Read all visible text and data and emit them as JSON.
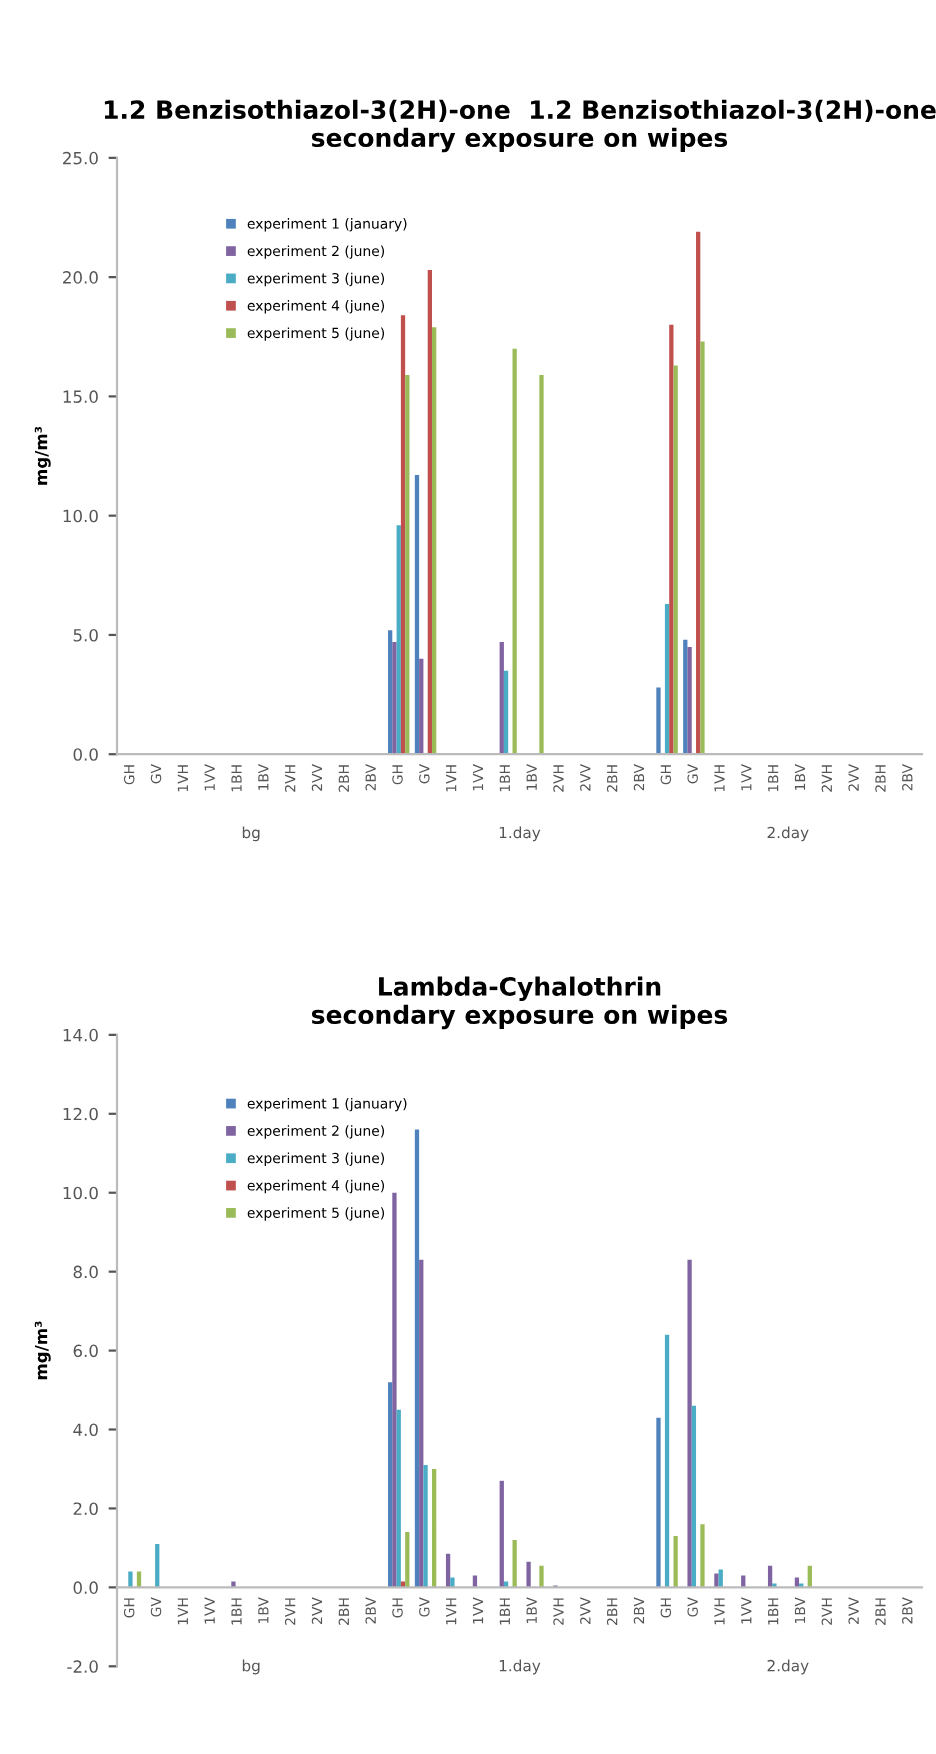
{
  "chart_data": [
    {
      "type": "bar",
      "title": "1.2 Benzisothiazol-3(2H)-one  1.2 Benzisothiazol-3(2H)-one\nsecondary exposure on wipes",
      "ylabel": "mg/m³",
      "categories": [
        "GH",
        "GV",
        "1VH",
        "1VV",
        "1BH",
        "1BV",
        "2VH",
        "2VV",
        "2BH",
        "2BV",
        "GH",
        "GV",
        "1VH",
        "1VV",
        "1BH",
        "1BV",
        "2VH",
        "2VV",
        "2BH",
        "2BV",
        "GH",
        "GV",
        "1VH",
        "1VV",
        "1BH",
        "1BV",
        "2VH",
        "2VV",
        "2BH",
        "2BV"
      ],
      "series": [
        {
          "name": "experiment 1 (january)",
          "color": "#4f81bd",
          "values": [
            0,
            0,
            0,
            0,
            0,
            0,
            0,
            0,
            0,
            0,
            5.2,
            11.7,
            0,
            0,
            0,
            0,
            0,
            0,
            0,
            0,
            2.8,
            4.8,
            0,
            0,
            0,
            0,
            0,
            0,
            0,
            0
          ]
        },
        {
          "name": "experiment 2 (june)",
          "color": "#8064a2",
          "values": [
            0,
            0,
            0,
            0,
            0,
            0,
            0,
            0,
            0,
            0,
            4.7,
            4.0,
            0,
            0,
            4.7,
            0,
            0,
            0,
            0,
            0,
            0,
            4.5,
            0,
            0,
            0,
            0,
            0,
            0,
            0,
            0
          ]
        },
        {
          "name": "experiment 3 (june)",
          "color": "#4bacc6",
          "values": [
            0,
            0,
            0,
            0,
            0,
            0,
            0,
            0,
            0,
            0,
            9.6,
            0,
            0,
            0,
            3.5,
            0,
            0,
            0,
            0,
            0,
            6.3,
            0,
            0,
            0,
            0,
            0,
            0,
            0,
            0,
            0
          ]
        },
        {
          "name": "experiment 4 (june)",
          "color": "#c0504d",
          "values": [
            0,
            0,
            0,
            0,
            0,
            0,
            0,
            0,
            0,
            0,
            18.4,
            20.3,
            0,
            0,
            0,
            0,
            0,
            0,
            0,
            0,
            18.0,
            21.9,
            0,
            0,
            0,
            0,
            0,
            0,
            0,
            0
          ]
        },
        {
          "name": "experiment 5 (june)",
          "color": "#9bbb59",
          "values": [
            0,
            0,
            0,
            0,
            0,
            0,
            0,
            0,
            0,
            0,
            15.9,
            17.9,
            0,
            0,
            17.0,
            15.9,
            0,
            0,
            0,
            0,
            16.3,
            17.3,
            0,
            0,
            0,
            0,
            0,
            0,
            0,
            0
          ]
        }
      ],
      "ylim": [
        0,
        25
      ],
      "yticks": [
        {
          "value": 0,
          "label": "0.0"
        },
        {
          "value": 5,
          "label": "5.0"
        },
        {
          "value": 10,
          "label": "10.0"
        },
        {
          "value": 15,
          "label": "15.0"
        },
        {
          "value": 20,
          "label": "20.0"
        },
        {
          "value": 25,
          "label": "25.0"
        }
      ],
      "legend": "top left",
      "annotations": [
        "bg",
        "1.day",
        "2.day"
      ]
    },
    {
      "type": "bar",
      "title": "Lambda-Cyhalothrin\nsecondary exposure on wipes",
      "ylabel": "mg/m³",
      "categories": [
        "GH",
        "GV",
        "1VH",
        "1VV",
        "1BH",
        "1BV",
        "2VH",
        "2VV",
        "2BH",
        "2BV",
        "GH",
        "GV",
        "1VH",
        "1VV",
        "1BH",
        "1BV",
        "2VH",
        "2VV",
        "2BH",
        "2BV",
        "GH",
        "GV",
        "1VH",
        "1VV",
        "1BH",
        "1BV",
        "2VH",
        "2VV",
        "2BH",
        "2BV"
      ],
      "series": [
        {
          "name": "experiment 1 (january)",
          "color": "#4f81bd",
          "values": [
            0,
            0,
            0,
            0,
            0,
            0,
            0,
            0,
            0,
            0,
            5.2,
            11.6,
            0,
            0,
            0,
            0,
            0,
            0,
            0,
            0,
            4.3,
            0,
            0,
            0,
            0,
            0,
            0,
            0,
            0,
            0
          ]
        },
        {
          "name": "experiment 2 (june)",
          "color": "#8064a2",
          "values": [
            0,
            0,
            null,
            0,
            0.15,
            0,
            0,
            0,
            0,
            0,
            10.0,
            8.3,
            0.85,
            0.3,
            2.7,
            0.65,
            0.05,
            0,
            0,
            0,
            0,
            8.3,
            0.35,
            0.3,
            0.55,
            0.25,
            0,
            0,
            0,
            0
          ]
        },
        {
          "name": "experiment 3 (june)",
          "color": "#4bacc6",
          "values": [
            0.4,
            1.1,
            0,
            0,
            0,
            0,
            0,
            0,
            0,
            0,
            4.5,
            3.1,
            0.25,
            0,
            0.15,
            0,
            0,
            0,
            0,
            0,
            6.4,
            4.6,
            0.45,
            0,
            0.1,
            0.1,
            0,
            0,
            0,
            0
          ]
        },
        {
          "name": "experiment 4 (june)",
          "color": "#c0504d",
          "values": [
            0,
            0,
            0,
            0,
            0,
            0,
            0,
            0,
            0,
            0,
            0.15,
            0,
            0,
            0,
            0,
            0,
            0,
            0,
            0,
            0,
            0,
            0,
            0,
            0,
            0,
            0,
            0,
            0,
            0,
            0
          ]
        },
        {
          "name": "experiment 5 (june)",
          "color": "#9bbb59",
          "values": [
            0.4,
            0,
            0,
            0,
            0,
            0,
            0,
            0,
            0,
            0,
            1.4,
            3.0,
            0,
            0,
            1.2,
            0.55,
            0,
            0,
            0,
            0,
            1.3,
            1.6,
            0,
            0,
            0,
            0.55,
            0,
            0,
            0,
            0
          ]
        }
      ],
      "ylim": [
        -2,
        14
      ],
      "yticks": [
        {
          "value": -2,
          "label": "-2.0"
        },
        {
          "value": 0,
          "label": "0.0"
        },
        {
          "value": 2,
          "label": "2.0"
        },
        {
          "value": 4,
          "label": "4.0"
        },
        {
          "value": 6,
          "label": "6.0"
        },
        {
          "value": 8,
          "label": "8.0"
        },
        {
          "value": 10,
          "label": "10.0"
        },
        {
          "value": 12,
          "label": "12.0"
        },
        {
          "value": 14,
          "label": "14.0"
        }
      ],
      "legend": "top left",
      "annotations": [
        "bg",
        "1.day",
        "2.day"
      ]
    }
  ]
}
